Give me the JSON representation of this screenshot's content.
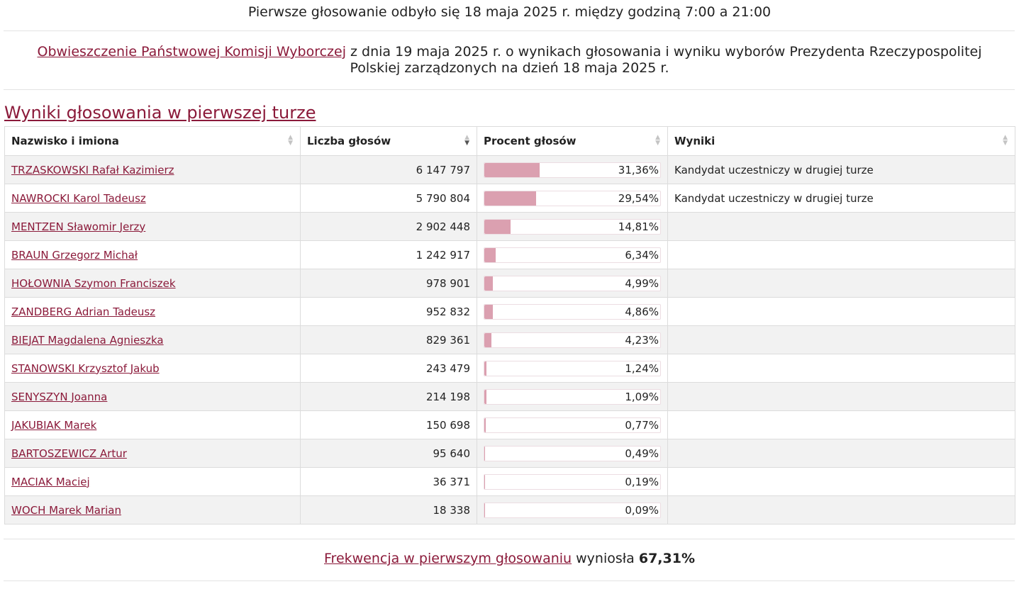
{
  "header": {
    "first_vote_text": "Pierwsze głosowanie odbyło się 18 maja 2025 r. między godziną 7:00 a 21:00"
  },
  "notice": {
    "link_text": "Obwieszczenie Państwowej Komisji Wyborczej",
    "rest_text": " z dnia 19 maja 2025 r. o wynikach głosowania i wyniku wyborów Prezydenta Rzeczypospolitej Polskiej zarządzonych na dzień 18 maja 2025 r."
  },
  "section": {
    "title": "Wyniki głosowania w pierwszej turze"
  },
  "table": {
    "columns": [
      "Nazwisko i imiona",
      "Liczba głosów",
      "Procent głosów",
      "Wyniki"
    ],
    "sorted_column": 1,
    "sort_direction": "desc",
    "rows": [
      {
        "name": "TRZASKOWSKI Rafał Kazimierz",
        "votes": "6 147 797",
        "percent_label": "31,36%",
        "percent": 31.36,
        "result": "Kandydat uczestniczy w drugiej turze"
      },
      {
        "name": "NAWROCKI Karol Tadeusz",
        "votes": "5 790 804",
        "percent_label": "29,54%",
        "percent": 29.54,
        "result": "Kandydat uczestniczy w drugiej turze"
      },
      {
        "name": "MENTZEN Sławomir Jerzy",
        "votes": "2 902 448",
        "percent_label": "14,81%",
        "percent": 14.81,
        "result": ""
      },
      {
        "name": "BRAUN Grzegorz Michał",
        "votes": "1 242 917",
        "percent_label": "6,34%",
        "percent": 6.34,
        "result": ""
      },
      {
        "name": "HOŁOWNIA Szymon Franciszek",
        "votes": "978 901",
        "percent_label": "4,99%",
        "percent": 4.99,
        "result": ""
      },
      {
        "name": "ZANDBERG Adrian Tadeusz",
        "votes": "952 832",
        "percent_label": "4,86%",
        "percent": 4.86,
        "result": ""
      },
      {
        "name": "BIEJAT Magdalena Agnieszka",
        "votes": "829 361",
        "percent_label": "4,23%",
        "percent": 4.23,
        "result": ""
      },
      {
        "name": "STANOWSKI Krzysztof Jakub",
        "votes": "243 479",
        "percent_label": "1,24%",
        "percent": 1.24,
        "result": ""
      },
      {
        "name": "SENYSZYN Joanna",
        "votes": "214 198",
        "percent_label": "1,09%",
        "percent": 1.09,
        "result": ""
      },
      {
        "name": "JAKUBIAK Marek",
        "votes": "150 698",
        "percent_label": "0,77%",
        "percent": 0.77,
        "result": ""
      },
      {
        "name": "BARTOSZEWICZ Artur",
        "votes": "95 640",
        "percent_label": "0,49%",
        "percent": 0.49,
        "result": ""
      },
      {
        "name": "MACIAK Maciej",
        "votes": "36 371",
        "percent_label": "0,19%",
        "percent": 0.19,
        "result": ""
      },
      {
        "name": "WOCH Marek Marian",
        "votes": "18 338",
        "percent_label": "0,09%",
        "percent": 0.09,
        "result": ""
      }
    ]
  },
  "turnout": {
    "link_text": "Frekwencja w pierwszym głosowaniu",
    "middle_text": " wyniosła ",
    "value": "67,31%"
  },
  "colors": {
    "link": "#8b1a3a",
    "bar_fill": "#dba0b0",
    "row_alt": "#f2f2f2"
  }
}
